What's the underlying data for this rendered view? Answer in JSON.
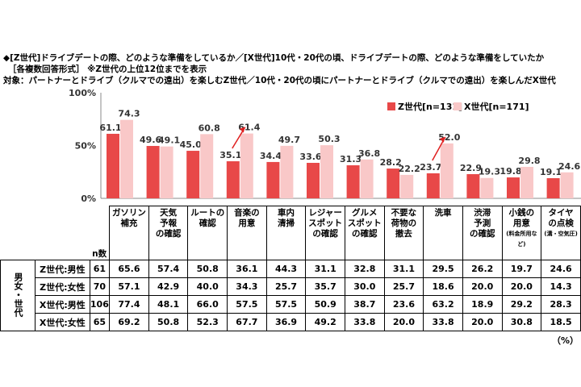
{
  "title_lines": [
    "◆[Z世代]ドライブデートの際、どのような準備をしているか／[X世代]10代・20代の頃、ドライブデートの際、どのような準備をしていたか",
    "［各複数回答形式］ ※Z世代の上位12位までを表示",
    "対象：パートナーとドライブ（クルマでの遠出）を楽しむZ世代／10代・20代の頃にパートナーとドライブ（クルマでの遠出）を楽しんだX世代"
  ],
  "unit": "（%）",
  "group_label": "男女・世代",
  "n_label": "n数",
  "colors": {
    "z": "#e84848",
    "x": "#f9c8c8",
    "arrow": "#e02020"
  },
  "chart_data": {
    "type": "bar",
    "ylim": [
      0,
      100
    ],
    "yticks": [
      "0%",
      "50%",
      "100%"
    ],
    "legend_position": "top-right",
    "categories": [
      "ガソリン\n補充",
      "天気\n予報\nの確認",
      "ルートの\n確認",
      "音楽の\n用意",
      "車内\n清掃",
      "レジャー\nスポット\nの確認",
      "グルメ\nスポット\nの確認",
      "不要な\n荷物の\n撤去",
      "洗車",
      "渋滞\n予測\nの確認",
      "小銭の\n用意",
      "タイヤ\nの点検"
    ],
    "category_notes": [
      "",
      "",
      "",
      "",
      "",
      "",
      "",
      "",
      "",
      "",
      "(料金所用など)",
      "(溝・空気圧)"
    ],
    "series": [
      {
        "name": "Z世代[n=131]",
        "values": [
          61.1,
          49.6,
          45.0,
          35.1,
          34.4,
          33.6,
          31.3,
          28.2,
          23.7,
          22.9,
          19.8,
          19.1
        ]
      },
      {
        "name": "X世代[n=171]",
        "values": [
          74.3,
          49.1,
          60.8,
          61.4,
          49.7,
          50.3,
          36.8,
          22.2,
          52.0,
          19.3,
          29.8,
          24.6
        ]
      }
    ],
    "highlight_arrows": [
      "音楽の\n用意",
      "洗車"
    ]
  },
  "table": {
    "rows": [
      {
        "label": "Z世代:男性",
        "n": "61",
        "values": [
          "65.6",
          "57.4",
          "50.8",
          "36.1",
          "44.3",
          "31.1",
          "32.8",
          "31.1",
          "29.5",
          "26.2",
          "19.7",
          "24.6"
        ]
      },
      {
        "label": "Z世代:女性",
        "n": "70",
        "values": [
          "57.1",
          "42.9",
          "40.0",
          "34.3",
          "25.7",
          "35.7",
          "30.0",
          "25.7",
          "18.6",
          "20.0",
          "20.0",
          "14.3"
        ]
      },
      {
        "label": "X世代:男性",
        "n": "106",
        "values": [
          "77.4",
          "48.1",
          "66.0",
          "57.5",
          "57.5",
          "50.9",
          "38.7",
          "23.6",
          "63.2",
          "18.9",
          "29.2",
          "28.3"
        ]
      },
      {
        "label": "X世代:女性",
        "n": "65",
        "values": [
          "69.2",
          "50.8",
          "52.3",
          "67.7",
          "36.9",
          "49.2",
          "33.8",
          "20.0",
          "33.8",
          "20.0",
          "30.8",
          "18.5"
        ]
      }
    ]
  }
}
